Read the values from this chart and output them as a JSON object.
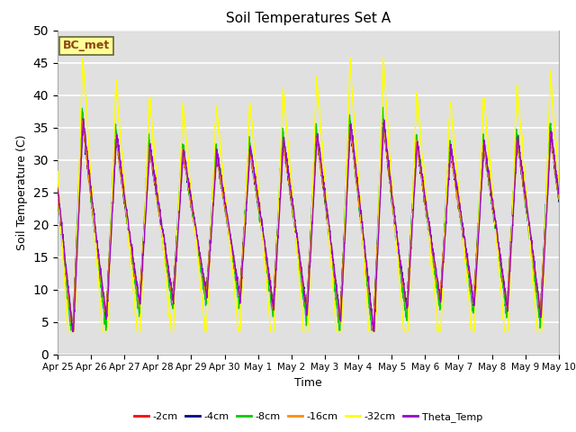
{
  "title": "Soil Temperatures Set A",
  "xlabel": "Time",
  "ylabel": "Soil Temperature (C)",
  "ylim": [
    0,
    50
  ],
  "yticks": [
    0,
    5,
    10,
    15,
    20,
    25,
    30,
    35,
    40,
    45,
    50
  ],
  "bg_color": "#e0e0e0",
  "fig_bg": "#ffffff",
  "label_box_text": "BC_met",
  "label_box_bg": "#ffff99",
  "label_box_edge": "#8b4513",
  "series": [
    {
      "label": "-2cm",
      "color": "#ff0000"
    },
    {
      "label": "-4cm",
      "color": "#00008b"
    },
    {
      "label": "-8cm",
      "color": "#00cc00"
    },
    {
      "label": "-16cm",
      "color": "#ff8c00"
    },
    {
      "label": "-32cm",
      "color": "#ffff00"
    },
    {
      "label": "Theta_Temp",
      "color": "#9900cc"
    }
  ],
  "tick_labels": [
    "Apr 25",
    "Apr 26",
    "Apr 27",
    "Apr 28",
    "Apr 29",
    "Apr 30",
    "May 1",
    "May 2",
    "May 3",
    "May 4",
    "May 5",
    "May 6",
    "May 7",
    "May 8",
    "May 9",
    "May 10"
  ]
}
